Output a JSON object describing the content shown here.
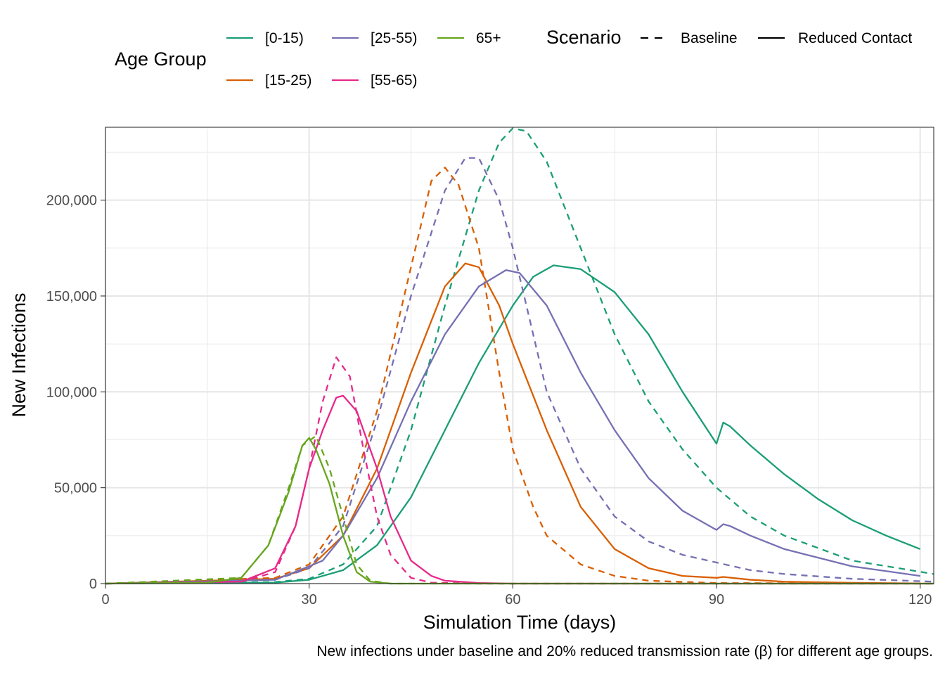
{
  "chart_data": {
    "type": "line",
    "xlabel": "Simulation Time (days)",
    "ylabel": "New Infections",
    "caption": "New infections under baseline and 20% reduced transmission rate (β) for different age groups.",
    "xlim": [
      0,
      122
    ],
    "ylim": [
      0,
      238000
    ],
    "x_ticks": [
      0,
      30,
      60,
      90,
      120
    ],
    "x_tick_labels": [
      "0",
      "30",
      "60",
      "90",
      "120"
    ],
    "y_ticks": [
      0,
      50000,
      100000,
      150000,
      200000
    ],
    "y_tick_labels": [
      "0",
      "50,000",
      "100,000",
      "150,000",
      "200,000"
    ],
    "grid": true,
    "legend": {
      "position": "top",
      "color_title": "Age Group",
      "color_entries": [
        {
          "label": "[0-15)",
          "color": "#1b9e77"
        },
        {
          "label": "[15-25)",
          "color": "#d95f02"
        },
        {
          "label": "[25-55)",
          "color": "#7570b3"
        },
        {
          "label": "[55-65)",
          "color": "#e7298a"
        },
        {
          "label": "65+",
          "color": "#66a61e"
        }
      ],
      "linetype_title": "Scenario",
      "linetype_entries": [
        {
          "label": "Baseline",
          "linetype": "dashed"
        },
        {
          "label": "Reduced Contact",
          "linetype": "solid"
        }
      ]
    },
    "series": [
      {
        "group": "[0-15)",
        "scenario": "Baseline",
        "color": "#1b9e77",
        "linetype": "dashed",
        "points": [
          [
            0,
            0
          ],
          [
            25,
            800
          ],
          [
            30,
            2500
          ],
          [
            35,
            10000
          ],
          [
            40,
            30000
          ],
          [
            45,
            80000
          ],
          [
            50,
            145000
          ],
          [
            55,
            205000
          ],
          [
            58,
            230000
          ],
          [
            60,
            237500
          ],
          [
            62,
            236000
          ],
          [
            65,
            220000
          ],
          [
            70,
            175000
          ],
          [
            75,
            130000
          ],
          [
            80,
            95000
          ],
          [
            85,
            70000
          ],
          [
            90,
            50000
          ],
          [
            95,
            35000
          ],
          [
            100,
            25000
          ],
          [
            110,
            12000
          ],
          [
            122,
            5000
          ]
        ]
      },
      {
        "group": "[0-15)",
        "scenario": "Reduced Contact",
        "color": "#1b9e77",
        "linetype": "solid",
        "points": [
          [
            0,
            0
          ],
          [
            25,
            500
          ],
          [
            30,
            2000
          ],
          [
            35,
            7000
          ],
          [
            40,
            20000
          ],
          [
            45,
            45000
          ],
          [
            50,
            80000
          ],
          [
            55,
            115000
          ],
          [
            60,
            145000
          ],
          [
            63,
            160000
          ],
          [
            66,
            166000
          ],
          [
            70,
            164000
          ],
          [
            75,
            152000
          ],
          [
            80,
            130000
          ],
          [
            85,
            100000
          ],
          [
            90,
            73000
          ],
          [
            91,
            84000
          ],
          [
            92,
            82000
          ],
          [
            95,
            72000
          ],
          [
            100,
            57000
          ],
          [
            105,
            44000
          ],
          [
            110,
            33000
          ],
          [
            115,
            25000
          ],
          [
            120,
            18000
          ]
        ]
      },
      {
        "group": "[15-25)",
        "scenario": "Baseline",
        "color": "#d95f02",
        "linetype": "dashed",
        "points": [
          [
            0,
            0
          ],
          [
            25,
            3000
          ],
          [
            30,
            10000
          ],
          [
            35,
            35000
          ],
          [
            40,
            90000
          ],
          [
            45,
            165000
          ],
          [
            48,
            210000
          ],
          [
            50,
            217000
          ],
          [
            52,
            208000
          ],
          [
            55,
            175000
          ],
          [
            58,
            110000
          ],
          [
            60,
            70000
          ],
          [
            63,
            40000
          ],
          [
            65,
            25000
          ],
          [
            70,
            10000
          ],
          [
            75,
            4000
          ],
          [
            80,
            1500
          ],
          [
            90,
            300
          ],
          [
            122,
            0
          ]
        ]
      },
      {
        "group": "[15-25)",
        "scenario": "Reduced Contact",
        "color": "#d95f02",
        "linetype": "solid",
        "points": [
          [
            0,
            0
          ],
          [
            25,
            2500
          ],
          [
            30,
            8000
          ],
          [
            35,
            25000
          ],
          [
            40,
            60000
          ],
          [
            45,
            110000
          ],
          [
            50,
            155000
          ],
          [
            53,
            167000
          ],
          [
            55,
            165000
          ],
          [
            58,
            145000
          ],
          [
            60,
            125000
          ],
          [
            65,
            80000
          ],
          [
            70,
            40000
          ],
          [
            75,
            18000
          ],
          [
            80,
            8000
          ],
          [
            85,
            4000
          ],
          [
            90,
            3000
          ],
          [
            91,
            3500
          ],
          [
            95,
            2000
          ],
          [
            100,
            1000
          ],
          [
            110,
            400
          ],
          [
            120,
            100
          ]
        ]
      },
      {
        "group": "[25-55)",
        "scenario": "Baseline",
        "color": "#7570b3",
        "linetype": "dashed",
        "points": [
          [
            0,
            0
          ],
          [
            25,
            2000
          ],
          [
            30,
            8000
          ],
          [
            35,
            30000
          ],
          [
            40,
            85000
          ],
          [
            45,
            150000
          ],
          [
            50,
            205000
          ],
          [
            53,
            222000
          ],
          [
            55,
            222000
          ],
          [
            58,
            200000
          ],
          [
            60,
            175000
          ],
          [
            63,
            130000
          ],
          [
            65,
            100000
          ],
          [
            70,
            60000
          ],
          [
            75,
            35000
          ],
          [
            80,
            22000
          ],
          [
            85,
            15000
          ],
          [
            90,
            11000
          ],
          [
            95,
            7000
          ],
          [
            100,
            5000
          ],
          [
            110,
            2500
          ],
          [
            122,
            1000
          ]
        ]
      },
      {
        "group": "[25-55)",
        "scenario": "Reduced Contact",
        "color": "#7570b3",
        "linetype": "solid",
        "points": [
          [
            0,
            0
          ],
          [
            25,
            2000
          ],
          [
            30,
            9000
          ],
          [
            32,
            12000
          ],
          [
            35,
            25000
          ],
          [
            40,
            55000
          ],
          [
            45,
            95000
          ],
          [
            50,
            130000
          ],
          [
            55,
            155000
          ],
          [
            59,
            163500
          ],
          [
            61,
            162000
          ],
          [
            65,
            145000
          ],
          [
            70,
            110000
          ],
          [
            75,
            80000
          ],
          [
            80,
            55000
          ],
          [
            85,
            38000
          ],
          [
            90,
            28000
          ],
          [
            91,
            31000
          ],
          [
            92,
            30000
          ],
          [
            95,
            25000
          ],
          [
            100,
            18000
          ],
          [
            110,
            9000
          ],
          [
            120,
            4000
          ]
        ]
      },
      {
        "group": "[55-65)",
        "scenario": "Baseline",
        "color": "#e7298a",
        "linetype": "dashed",
        "points": [
          [
            0,
            0
          ],
          [
            20,
            1000
          ],
          [
            25,
            6000
          ],
          [
            28,
            30000
          ],
          [
            30,
            60000
          ],
          [
            32,
            95000
          ],
          [
            34,
            118000
          ],
          [
            36,
            108000
          ],
          [
            38,
            70000
          ],
          [
            40,
            35000
          ],
          [
            42,
            15000
          ],
          [
            45,
            3000
          ],
          [
            48,
            500
          ],
          [
            55,
            0
          ],
          [
            122,
            0
          ]
        ]
      },
      {
        "group": "[55-65)",
        "scenario": "Reduced Contact",
        "color": "#e7298a",
        "linetype": "solid",
        "points": [
          [
            0,
            0
          ],
          [
            20,
            1000
          ],
          [
            25,
            8000
          ],
          [
            28,
            30000
          ],
          [
            30,
            60000
          ],
          [
            32,
            80000
          ],
          [
            34,
            97000
          ],
          [
            35,
            98000
          ],
          [
            37,
            90000
          ],
          [
            40,
            60000
          ],
          [
            42,
            35000
          ],
          [
            45,
            12000
          ],
          [
            48,
            4000
          ],
          [
            50,
            1500
          ],
          [
            55,
            300
          ],
          [
            60,
            0
          ],
          [
            122,
            0
          ]
        ]
      },
      {
        "group": "65+",
        "scenario": "Baseline",
        "color": "#66a61e",
        "linetype": "dashed",
        "points": [
          [
            0,
            0
          ],
          [
            20,
            3000
          ],
          [
            24,
            20000
          ],
          [
            27,
            50000
          ],
          [
            29,
            72000
          ],
          [
            31,
            77000
          ],
          [
            33,
            60000
          ],
          [
            35,
            35000
          ],
          [
            37,
            10000
          ],
          [
            39,
            1500
          ],
          [
            42,
            0
          ],
          [
            122,
            0
          ]
        ]
      },
      {
        "group": "65+",
        "scenario": "Reduced Contact",
        "color": "#66a61e",
        "linetype": "solid",
        "points": [
          [
            0,
            0
          ],
          [
            15,
            500
          ],
          [
            20,
            3000
          ],
          [
            24,
            20000
          ],
          [
            27,
            48000
          ],
          [
            29,
            72000
          ],
          [
            30,
            76000
          ],
          [
            31,
            70000
          ],
          [
            33,
            52000
          ],
          [
            35,
            25000
          ],
          [
            37,
            6000
          ],
          [
            39,
            1000
          ],
          [
            42,
            0
          ],
          [
            122,
            0
          ]
        ]
      }
    ]
  }
}
